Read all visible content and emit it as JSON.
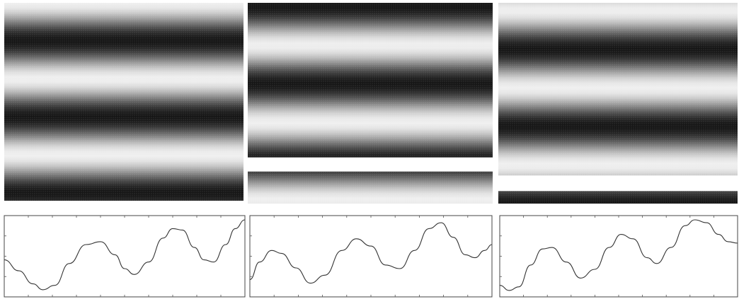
{
  "figure": {
    "panels": [
      {
        "id": "a",
        "fringe_phase": 0.0,
        "fringe_periods": 2.6,
        "curve": [
          [
            0.0,
            0.45
          ],
          [
            0.06,
            0.3
          ],
          [
            0.12,
            0.12
          ],
          [
            0.16,
            0.04
          ],
          [
            0.21,
            0.1
          ],
          [
            0.27,
            0.4
          ],
          [
            0.34,
            0.66
          ],
          [
            0.4,
            0.7
          ],
          [
            0.46,
            0.52
          ],
          [
            0.5,
            0.33
          ],
          [
            0.54,
            0.25
          ],
          [
            0.6,
            0.42
          ],
          [
            0.66,
            0.75
          ],
          [
            0.7,
            0.88
          ],
          [
            0.74,
            0.86
          ],
          [
            0.79,
            0.62
          ],
          [
            0.83,
            0.45
          ],
          [
            0.87,
            0.42
          ],
          [
            0.92,
            0.66
          ],
          [
            0.96,
            0.88
          ],
          [
            1.0,
            1.0
          ]
        ]
      },
      {
        "id": "b",
        "fringe_phase": 0.45,
        "fringe_periods": 2.6,
        "band_gap": true,
        "curve": [
          [
            0.0,
            0.18
          ],
          [
            0.04,
            0.42
          ],
          [
            0.09,
            0.58
          ],
          [
            0.13,
            0.54
          ],
          [
            0.19,
            0.34
          ],
          [
            0.25,
            0.13
          ],
          [
            0.31,
            0.24
          ],
          [
            0.38,
            0.58
          ],
          [
            0.44,
            0.74
          ],
          [
            0.5,
            0.64
          ],
          [
            0.56,
            0.38
          ],
          [
            0.62,
            0.33
          ],
          [
            0.68,
            0.58
          ],
          [
            0.74,
            0.88
          ],
          [
            0.79,
            0.96
          ],
          [
            0.84,
            0.76
          ],
          [
            0.89,
            0.52
          ],
          [
            0.93,
            0.48
          ],
          [
            0.97,
            0.58
          ],
          [
            1.0,
            0.66
          ]
        ]
      },
      {
        "id": "c",
        "fringe_phase": 0.9,
        "fringe_periods": 2.6,
        "band_gap": true,
        "curve": [
          [
            0.0,
            0.1
          ],
          [
            0.04,
            0.03
          ],
          [
            0.08,
            0.08
          ],
          [
            0.13,
            0.38
          ],
          [
            0.18,
            0.6
          ],
          [
            0.22,
            0.62
          ],
          [
            0.28,
            0.42
          ],
          [
            0.34,
            0.2
          ],
          [
            0.4,
            0.32
          ],
          [
            0.46,
            0.62
          ],
          [
            0.51,
            0.8
          ],
          [
            0.56,
            0.74
          ],
          [
            0.62,
            0.48
          ],
          [
            0.66,
            0.4
          ],
          [
            0.72,
            0.62
          ],
          [
            0.78,
            0.92
          ],
          [
            0.82,
            1.0
          ],
          [
            0.87,
            0.96
          ],
          [
            0.92,
            0.8
          ],
          [
            0.96,
            0.7
          ],
          [
            1.0,
            0.68
          ]
        ]
      }
    ]
  }
}
